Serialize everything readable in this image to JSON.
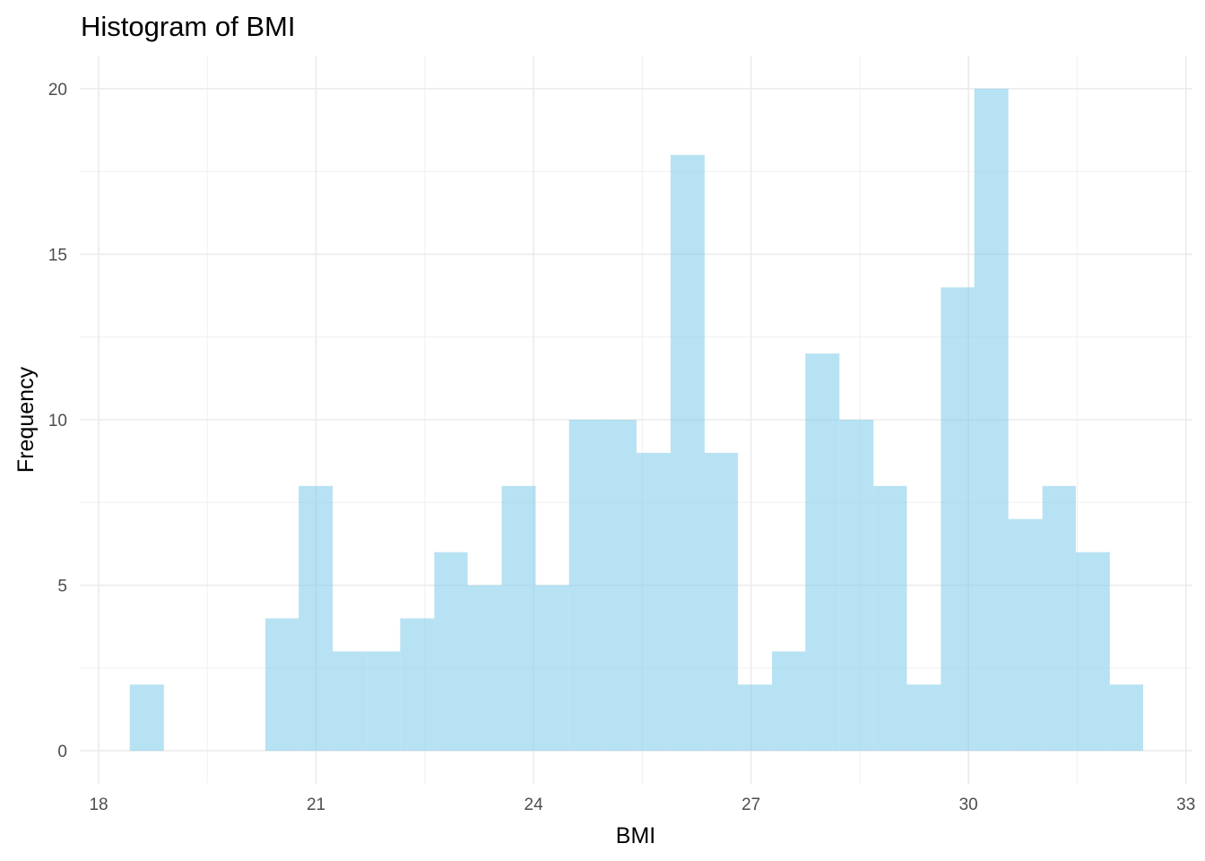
{
  "chart_data": {
    "type": "bar",
    "title": "Histogram of BMI",
    "xlabel": "BMI",
    "ylabel": "Frequency",
    "bin_width": 0.466,
    "bins": [
      {
        "x_start": 18.43,
        "x_end": 18.9,
        "count": 2
      },
      {
        "x_start": 18.9,
        "x_end": 19.37,
        "count": 0
      },
      {
        "x_start": 19.37,
        "x_end": 19.83,
        "count": 0
      },
      {
        "x_start": 19.83,
        "x_end": 20.3,
        "count": 0
      },
      {
        "x_start": 20.3,
        "x_end": 20.76,
        "count": 4
      },
      {
        "x_start": 20.76,
        "x_end": 21.23,
        "count": 8
      },
      {
        "x_start": 21.23,
        "x_end": 21.7,
        "count": 3
      },
      {
        "x_start": 21.7,
        "x_end": 22.16,
        "count": 3
      },
      {
        "x_start": 22.16,
        "x_end": 22.63,
        "count": 4
      },
      {
        "x_start": 22.63,
        "x_end": 23.09,
        "count": 6
      },
      {
        "x_start": 23.09,
        "x_end": 23.56,
        "count": 5
      },
      {
        "x_start": 23.56,
        "x_end": 24.03,
        "count": 8
      },
      {
        "x_start": 24.03,
        "x_end": 24.49,
        "count": 5
      },
      {
        "x_start": 24.49,
        "x_end": 24.96,
        "count": 10
      },
      {
        "x_start": 24.96,
        "x_end": 25.42,
        "count": 10
      },
      {
        "x_start": 25.42,
        "x_end": 25.89,
        "count": 9
      },
      {
        "x_start": 25.89,
        "x_end": 26.36,
        "count": 18
      },
      {
        "x_start": 26.36,
        "x_end": 26.82,
        "count": 9
      },
      {
        "x_start": 26.82,
        "x_end": 27.29,
        "count": 2
      },
      {
        "x_start": 27.29,
        "x_end": 27.75,
        "count": 3
      },
      {
        "x_start": 27.75,
        "x_end": 28.22,
        "count": 12
      },
      {
        "x_start": 28.22,
        "x_end": 28.69,
        "count": 10
      },
      {
        "x_start": 28.69,
        "x_end": 29.15,
        "count": 8
      },
      {
        "x_start": 29.15,
        "x_end": 29.62,
        "count": 2
      },
      {
        "x_start": 29.62,
        "x_end": 30.08,
        "count": 14
      },
      {
        "x_start": 30.08,
        "x_end": 30.55,
        "count": 20
      },
      {
        "x_start": 30.55,
        "x_end": 31.02,
        "count": 7
      },
      {
        "x_start": 31.02,
        "x_end": 31.48,
        "count": 8
      },
      {
        "x_start": 31.48,
        "x_end": 31.95,
        "count": 6
      },
      {
        "x_start": 31.95,
        "x_end": 32.41,
        "count": 2
      }
    ],
    "xlim": [
      17.74,
      33.09
    ],
    "ylim": [
      -1.0,
      21.0
    ],
    "x_ticks": [
      18,
      21,
      24,
      27,
      30,
      33
    ],
    "x_tick_labels": [
      "18",
      "21",
      "24",
      "27",
      "30",
      "33"
    ],
    "y_ticks": [
      0,
      5,
      10,
      15,
      20
    ],
    "y_tick_labels": [
      "0",
      "5",
      "10",
      "15",
      "20"
    ],
    "x_minor_ticks": [
      19.5,
      22.5,
      25.5,
      28.5,
      31.5
    ],
    "y_minor_ticks": [
      2.5,
      7.5,
      12.5,
      17.5
    ],
    "bar_color": "#87ceeb",
    "bar_opacity": 0.6,
    "grid": true,
    "legend": "none"
  }
}
